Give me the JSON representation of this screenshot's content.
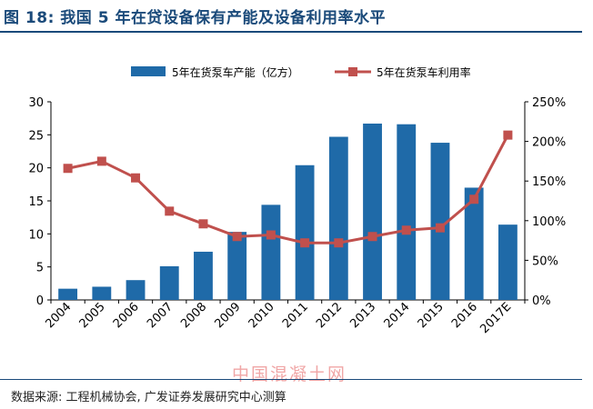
{
  "figure": {
    "title": "图 18: 我国 5 年在贷设备保有产能及设备利用率水平",
    "source": "数据来源: 工程机械协会, 广发证券发展研究中心测算",
    "watermark": "中国混凝土网"
  },
  "chart_data": {
    "type": "bar+line",
    "categories": [
      "2004",
      "2005",
      "2006",
      "2007",
      "2008",
      "2009",
      "2010",
      "2011",
      "2012",
      "2013",
      "2014",
      "2015",
      "2016",
      "2017E"
    ],
    "series": [
      {
        "name": "5年在货泵车产能（亿方）",
        "type": "bar",
        "axis": "left",
        "color": "#1f6aa8",
        "values": [
          1.7,
          2.0,
          3.0,
          5.1,
          7.3,
          10.3,
          14.4,
          20.4,
          24.7,
          26.7,
          26.6,
          23.8,
          17.0,
          11.4
        ]
      },
      {
        "name": "5年在货泵车利用率",
        "type": "line",
        "axis": "right",
        "color": "#c0504d",
        "values": [
          166,
          175,
          154,
          112,
          96,
          80,
          82,
          72,
          72,
          80,
          88,
          91,
          127,
          208
        ]
      }
    ],
    "y_left": {
      "min": 0,
      "max": 30,
      "ticks": [
        0,
        5,
        10,
        15,
        20,
        25,
        30
      ]
    },
    "y_right": {
      "min": 0,
      "max": 250,
      "ticks": [
        "0%",
        "50%",
        "100%",
        "150%",
        "200%",
        "250%"
      ]
    },
    "legend_position": "top-center"
  }
}
